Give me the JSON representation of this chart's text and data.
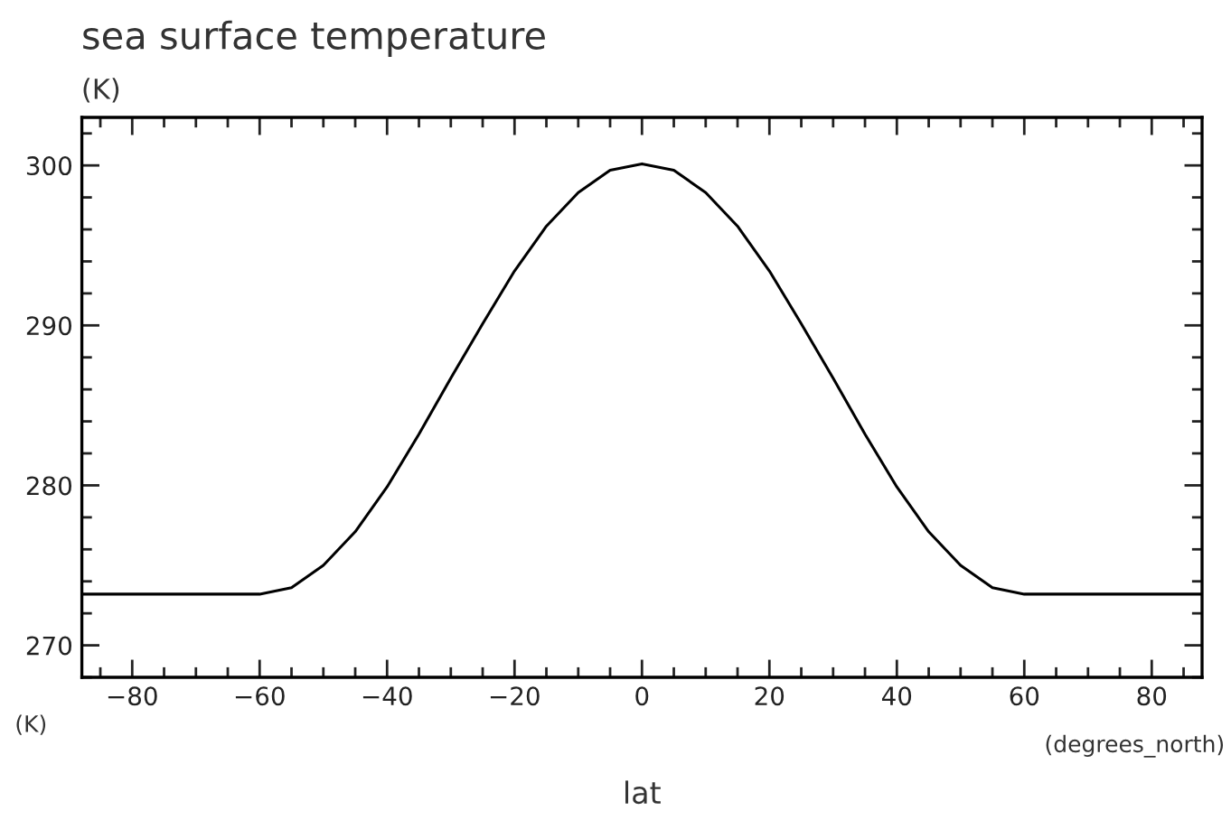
{
  "chart_data": {
    "type": "line",
    "title": "sea surface temperature",
    "subtitle": "(K)",
    "xlabel": "lat",
    "annotations": [
      "(K)",
      "(degrees_north)"
    ],
    "x": [
      -87.9,
      -80,
      -70,
      -60,
      -55,
      -50,
      -45,
      -40,
      -35,
      -30,
      -25,
      -20,
      -15,
      -10,
      -5,
      0,
      5,
      10,
      15,
      20,
      25,
      30,
      35,
      40,
      45,
      50,
      55,
      60,
      70,
      80,
      87.9
    ],
    "series": [
      {
        "color": "#000000",
        "values": [
          273.2,
          273.2,
          273.2,
          273.2,
          273.6,
          275.0,
          277.1,
          279.9,
          283.2,
          286.7,
          290.1,
          293.4,
          296.2,
          298.3,
          299.7,
          300.1,
          299.7,
          298.3,
          296.2,
          293.4,
          290.1,
          286.7,
          283.2,
          279.9,
          277.1,
          275.0,
          273.6,
          273.2,
          273.2,
          273.2,
          273.2
        ]
      }
    ],
    "xlim": [
      -87.9,
      87.9
    ],
    "xticks": [
      -80,
      -60,
      -40,
      -20,
      0,
      20,
      40,
      60,
      80
    ],
    "ylim": [
      268,
      303
    ],
    "yticks": [
      270,
      280,
      290,
      300
    ],
    "grid": false,
    "marker": "none",
    "line_style": "solid"
  }
}
